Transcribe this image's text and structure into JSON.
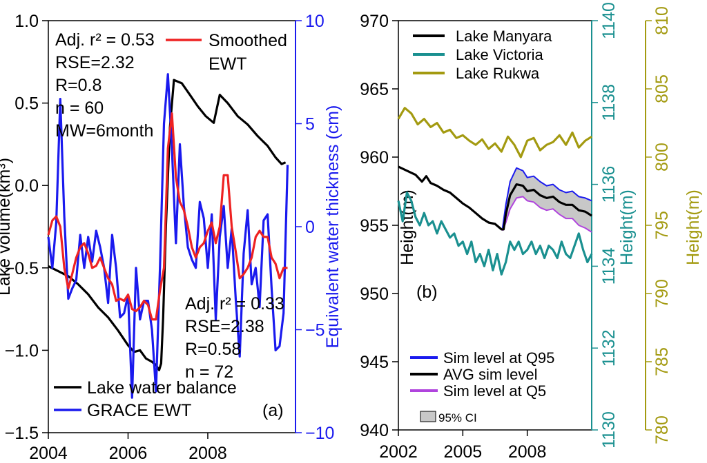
{
  "colors": {
    "black": "#000000",
    "blue": "#1a1aee",
    "red": "#ee2222",
    "teal": "#1a9090",
    "olive": "#a39a10",
    "purple": "#b044dd",
    "ci_fill": "#c8c8c8"
  },
  "chart_data": [
    {
      "panel": "(a)",
      "type": "line",
      "xlim": [
        2004,
        2010.2
      ],
      "x_ticks": [
        2004,
        2006,
        2008
      ],
      "x_tick_labels": [
        "2004",
        "2006",
        "2008"
      ],
      "ylabel_left": "Lake volume(km³)",
      "ylim_left": [
        -1.5,
        1.0
      ],
      "y_ticks_left": [
        -1.5,
        -1.0,
        -0.5,
        0.0,
        0.5,
        1.0
      ],
      "y_tick_labels_left": [
        "−1.5",
        "−1.0",
        "−0.5",
        "0.0",
        "0.5",
        "1.0"
      ],
      "ylabel_right": "Equivalent water thickness (cm)",
      "ylim_right": [
        -10,
        10
      ],
      "y_ticks_right": [
        -10,
        -5,
        0,
        5,
        10
      ],
      "y_tick_labels_right": [
        "−10",
        "−5",
        "0",
        "5",
        "10"
      ],
      "stats_top": [
        "Adj. r² = 0.53",
        "RSE=2.32",
        "R=0.8",
        "n = 60",
        "MW=6month"
      ],
      "stats_bottom": [
        "Adj. r² = 0.33",
        "RSE=2.38",
        "R=0.58",
        "n = 72"
      ],
      "series": [
        {
          "name": "Lake water balance",
          "axis": "left",
          "color": "black",
          "x": [
            2004.0,
            2004.25,
            2004.5,
            2004.75,
            2005.0,
            2005.25,
            2005.5,
            2005.75,
            2006.0,
            2006.15,
            2006.3,
            2006.45,
            2006.6,
            2006.7,
            2006.78,
            2006.83,
            2006.88,
            2006.95,
            2007.05,
            2007.15,
            2007.35,
            2007.55,
            2007.75,
            2007.95,
            2008.15,
            2008.3,
            2008.5,
            2008.75,
            2009.0,
            2009.25,
            2009.5,
            2009.7,
            2009.85,
            2009.95
          ],
          "y": [
            -0.49,
            -0.52,
            -0.55,
            -0.6,
            -0.66,
            -0.74,
            -0.8,
            -0.88,
            -0.97,
            -1.01,
            -1.0,
            -1.05,
            -1.07,
            -1.09,
            -1.12,
            -1.08,
            -0.8,
            -0.25,
            0.35,
            0.64,
            0.62,
            0.55,
            0.48,
            0.42,
            0.38,
            0.55,
            0.5,
            0.42,
            0.37,
            0.3,
            0.24,
            0.17,
            0.13,
            0.14
          ]
        },
        {
          "name": "GRACE EWT",
          "axis": "right",
          "color": "blue",
          "x": [
            2004.0,
            2004.1,
            2004.2,
            2004.3,
            2004.4,
            2004.5,
            2004.6,
            2004.7,
            2004.8,
            2004.9,
            2005.0,
            2005.1,
            2005.2,
            2005.3,
            2005.4,
            2005.5,
            2005.6,
            2005.7,
            2005.8,
            2005.9,
            2006.0,
            2006.1,
            2006.2,
            2006.3,
            2006.4,
            2006.5,
            2006.6,
            2006.7,
            2006.8,
            2006.9,
            2007.0,
            2007.1,
            2007.2,
            2007.3,
            2007.4,
            2007.5,
            2007.6,
            2007.7,
            2007.8,
            2007.9,
            2008.0,
            2008.1,
            2008.2,
            2008.3,
            2008.4,
            2008.5,
            2008.6,
            2008.7,
            2008.8,
            2008.9,
            2009.0,
            2009.1,
            2009.2,
            2009.3,
            2009.4,
            2009.5,
            2009.6,
            2009.7,
            2009.8,
            2009.9,
            2010.0
          ],
          "y": [
            -0.5,
            -2.0,
            0.2,
            6.2,
            0.5,
            -3.5,
            -3.0,
            -2.6,
            -0.4,
            -2.0,
            -0.5,
            -1.7,
            -0.2,
            -1.0,
            -2.0,
            -3.7,
            -0.4,
            -2.0,
            -4.4,
            -4.2,
            -3.3,
            -8.3,
            -2.0,
            -4.5,
            -3.6,
            -3.6,
            -5.0,
            -8.0,
            -2.0,
            5.0,
            7.4,
            3.8,
            -0.8,
            4.0,
            1.0,
            -1.0,
            -1.6,
            -2.0,
            1.2,
            0.4,
            -2.0,
            0.6,
            -4.5,
            -0.5,
            1.0,
            -2.0,
            -0.1,
            -3.5,
            -6.3,
            -1.3,
            0.8,
            -2.8,
            -2.0,
            -3.9,
            0.3,
            0.6,
            -3.0,
            -6.0,
            -5.8,
            -4.2,
            3.0
          ]
        },
        {
          "name": "Smoothed EWT",
          "axis": "right",
          "color": "red",
          "x": [
            2004.0,
            2004.1,
            2004.2,
            2004.3,
            2004.4,
            2004.5,
            2004.6,
            2004.7,
            2004.8,
            2004.9,
            2005.0,
            2005.1,
            2005.2,
            2005.3,
            2005.4,
            2005.5,
            2005.6,
            2005.7,
            2005.8,
            2005.9,
            2006.0,
            2006.1,
            2006.2,
            2006.3,
            2006.4,
            2006.5,
            2006.6,
            2006.7,
            2006.8,
            2006.9,
            2007.0,
            2007.1,
            2007.2,
            2007.3,
            2007.4,
            2007.5,
            2007.6,
            2007.7,
            2007.8,
            2007.9,
            2008.0,
            2008.1,
            2008.2,
            2008.3,
            2008.4,
            2008.5,
            2008.6,
            2008.7,
            2008.8,
            2008.9,
            2009.0,
            2009.1,
            2009.2,
            2009.3,
            2009.4,
            2009.5,
            2009.6,
            2009.7,
            2009.8,
            2009.9,
            2010.0
          ],
          "y": [
            -0.4,
            0.3,
            0.5,
            0.0,
            -2.0,
            -3.0,
            -2.3,
            -1.5,
            -1.0,
            -0.8,
            -1.3,
            -2.0,
            -1.9,
            -1.5,
            -2.0,
            -2.5,
            -2.8,
            -3.6,
            -3.5,
            -3.6,
            -3.3,
            -4.0,
            -4.1,
            -3.9,
            -3.6,
            -3.8,
            -4.5,
            -4.5,
            -3.1,
            -2.0,
            3.8,
            5.5,
            2.4,
            1.2,
            0.8,
            0.0,
            -1.0,
            -1.5,
            -1.0,
            -0.8,
            -0.2,
            0.2,
            -0.8,
            0.0,
            2.5,
            2.5,
            0.0,
            -1.2,
            -2.5,
            -2.3,
            -2.0,
            -1.5,
            -0.5,
            -0.2,
            -0.5,
            -0.5,
            -1.5,
            -1.8,
            -2.5,
            -2.0,
            -2.0
          ]
        }
      ],
      "legend_bottom": [
        {
          "label": "Lake water balance",
          "color": "black"
        },
        {
          "label": "GRACE EWT",
          "color": "blue"
        }
      ],
      "legend_top": [
        {
          "label": "Smoothed",
          "label2": "EWT",
          "color": "red"
        }
      ]
    },
    {
      "panel": "(b)",
      "type": "line",
      "xlim": [
        2002,
        2011.0
      ],
      "x_ticks": [
        2002,
        2005,
        2008
      ],
      "x_tick_labels": [
        "2002",
        "2005",
        "2008"
      ],
      "axes": [
        {
          "label": "Height(m)",
          "color": "black",
          "ylim": [
            940,
            970
          ],
          "ticks": [
            940,
            945,
            950,
            955,
            960,
            965,
            970
          ]
        },
        {
          "label": "Height(m)",
          "color": "teal",
          "ylim": [
            1130,
            1140
          ],
          "ticks": [
            1130,
            1132,
            1134,
            1136,
            1138,
            1140
          ]
        },
        {
          "label": "Height(m)",
          "color": "olive",
          "ylim": [
            780,
            810
          ],
          "ticks": [
            780,
            785,
            790,
            795,
            800,
            805,
            810
          ]
        }
      ],
      "ci": {
        "x": [
          2006.85,
          2007.0,
          2007.2,
          2007.5,
          2007.8,
          2008.0,
          2008.3,
          2008.6,
          2008.9,
          2009.2,
          2009.5,
          2009.8,
          2010.1,
          2010.4,
          2010.7,
          2011.0
        ],
        "upper": [
          954.8,
          956.5,
          958.2,
          959.2,
          959.0,
          958.5,
          958.6,
          958.2,
          957.9,
          958.0,
          957.6,
          957.4,
          957.5,
          957.1,
          957.0,
          956.8
        ],
        "lower": [
          954.6,
          955.2,
          956.2,
          957.0,
          957.1,
          956.8,
          956.7,
          956.3,
          956.1,
          956.2,
          955.8,
          955.5,
          955.5,
          955.0,
          954.8,
          954.5
        ]
      },
      "series": [
        {
          "name": "Lake Manyara",
          "axis": 0,
          "color": "black",
          "x": [
            2002.0,
            2002.4,
            2002.8,
            2003.1,
            2003.3,
            2003.5,
            2003.8,
            2004.1,
            2004.4,
            2004.7,
            2005.0,
            2005.3,
            2005.6,
            2005.9,
            2006.2,
            2006.5,
            2006.8,
            2006.9,
            2007.0,
            2007.2,
            2007.5,
            2007.8,
            2008.0,
            2008.3,
            2008.6,
            2008.9,
            2009.2,
            2009.5,
            2009.8,
            2010.1,
            2010.4,
            2010.7,
            2011.0
          ],
          "y": [
            959.3,
            959.0,
            958.7,
            958.2,
            958.6,
            958.1,
            957.9,
            957.6,
            957.4,
            957.0,
            956.6,
            956.3,
            955.9,
            955.5,
            955.2,
            955.1,
            954.7,
            954.7,
            955.8,
            957.2,
            958.0,
            957.9,
            957.5,
            957.6,
            957.2,
            957.0,
            957.1,
            956.7,
            956.5,
            956.5,
            956.1,
            956.0,
            955.7
          ]
        },
        {
          "name": "Lake Victoria",
          "axis": 1,
          "color": "teal",
          "x": [
            2002.0,
            2002.2,
            2002.4,
            2002.6,
            2002.8,
            2003.0,
            2003.2,
            2003.4,
            2003.6,
            2003.8,
            2004.0,
            2004.2,
            2004.4,
            2004.6,
            2004.8,
            2005.0,
            2005.2,
            2005.4,
            2005.6,
            2005.8,
            2006.0,
            2006.2,
            2006.4,
            2006.6,
            2006.8,
            2007.0,
            2007.2,
            2007.4,
            2007.6,
            2007.8,
            2008.0,
            2008.2,
            2008.4,
            2008.6,
            2008.8,
            2009.0,
            2009.2,
            2009.4,
            2009.6,
            2009.8,
            2010.0,
            2010.2,
            2010.4,
            2010.6,
            2010.8,
            2011.0
          ],
          "y": [
            1135.6,
            1135.1,
            1135.8,
            1135.6,
            1135.2,
            1135.0,
            1135.3,
            1135.0,
            1135.1,
            1134.8,
            1135.1,
            1134.9,
            1134.7,
            1134.8,
            1134.5,
            1134.6,
            1134.3,
            1134.6,
            1134.1,
            1134.3,
            1134.0,
            1134.4,
            1133.9,
            1134.3,
            1133.8,
            1134.1,
            1134.6,
            1134.4,
            1134.6,
            1134.3,
            1134.4,
            1134.6,
            1134.3,
            1134.5,
            1134.2,
            1134.5,
            1134.4,
            1134.2,
            1134.6,
            1134.3,
            1134.2,
            1134.5,
            1134.8,
            1134.4,
            1134.1,
            1134.3
          ]
        },
        {
          "name": "Lake Rukwa",
          "axis": 2,
          "color": "olive",
          "x": [
            2002.0,
            2002.3,
            2002.6,
            2002.9,
            2003.2,
            2003.5,
            2003.8,
            2004.1,
            2004.4,
            2004.7,
            2005.0,
            2005.3,
            2005.6,
            2005.9,
            2006.2,
            2006.5,
            2006.8,
            2007.1,
            2007.4,
            2007.7,
            2008.0,
            2008.3,
            2008.6,
            2008.9,
            2009.2,
            2009.5,
            2009.8,
            2010.1,
            2010.4,
            2010.7,
            2011.0
          ],
          "y": [
            802.8,
            803.6,
            803.2,
            802.4,
            802.8,
            802.2,
            802.5,
            801.8,
            802.0,
            801.4,
            801.6,
            801.2,
            800.9,
            801.3,
            800.6,
            801.0,
            800.4,
            801.5,
            800.9,
            800.0,
            801.2,
            801.4,
            800.5,
            800.9,
            801.1,
            801.6,
            800.9,
            801.8,
            800.7,
            801.2,
            801.5
          ]
        },
        {
          "name": "Sim level at Q95",
          "axis": 0,
          "color": "blue",
          "x": [
            2006.85,
            2007.0,
            2007.2,
            2007.5,
            2007.8,
            2008.0,
            2008.3,
            2008.6,
            2008.9,
            2009.2,
            2009.5,
            2009.8,
            2010.1,
            2010.4,
            2010.7,
            2011.0
          ],
          "y": [
            954.8,
            956.5,
            958.2,
            959.2,
            959.0,
            958.5,
            958.6,
            958.2,
            957.9,
            958.0,
            957.6,
            957.4,
            957.5,
            957.1,
            957.0,
            956.8
          ]
        },
        {
          "name": "Sim level at Q5",
          "axis": 0,
          "color": "purple",
          "x": [
            2006.85,
            2007.0,
            2007.2,
            2007.5,
            2007.8,
            2008.0,
            2008.3,
            2008.6,
            2008.9,
            2009.2,
            2009.5,
            2009.8,
            2010.1,
            2010.4,
            2010.7,
            2011.0
          ],
          "y": [
            954.6,
            955.2,
            956.2,
            957.0,
            957.1,
            956.8,
            956.7,
            956.3,
            956.1,
            956.2,
            955.8,
            955.5,
            955.5,
            955.0,
            954.8,
            954.5
          ]
        }
      ],
      "legend_top": [
        {
          "label": "Lake Manyara",
          "color": "black"
        },
        {
          "label": "Lake Victoria",
          "color": "teal"
        },
        {
          "label": "Lake Rukwa",
          "color": "olive"
        }
      ],
      "legend_bottom": [
        {
          "label": "Sim level at Q95",
          "color": "blue"
        },
        {
          "label": "AVG sim level",
          "color": "black"
        },
        {
          "label": "Sim level at Q5",
          "color": "purple"
        }
      ],
      "ci_label": "95% CI"
    }
  ]
}
